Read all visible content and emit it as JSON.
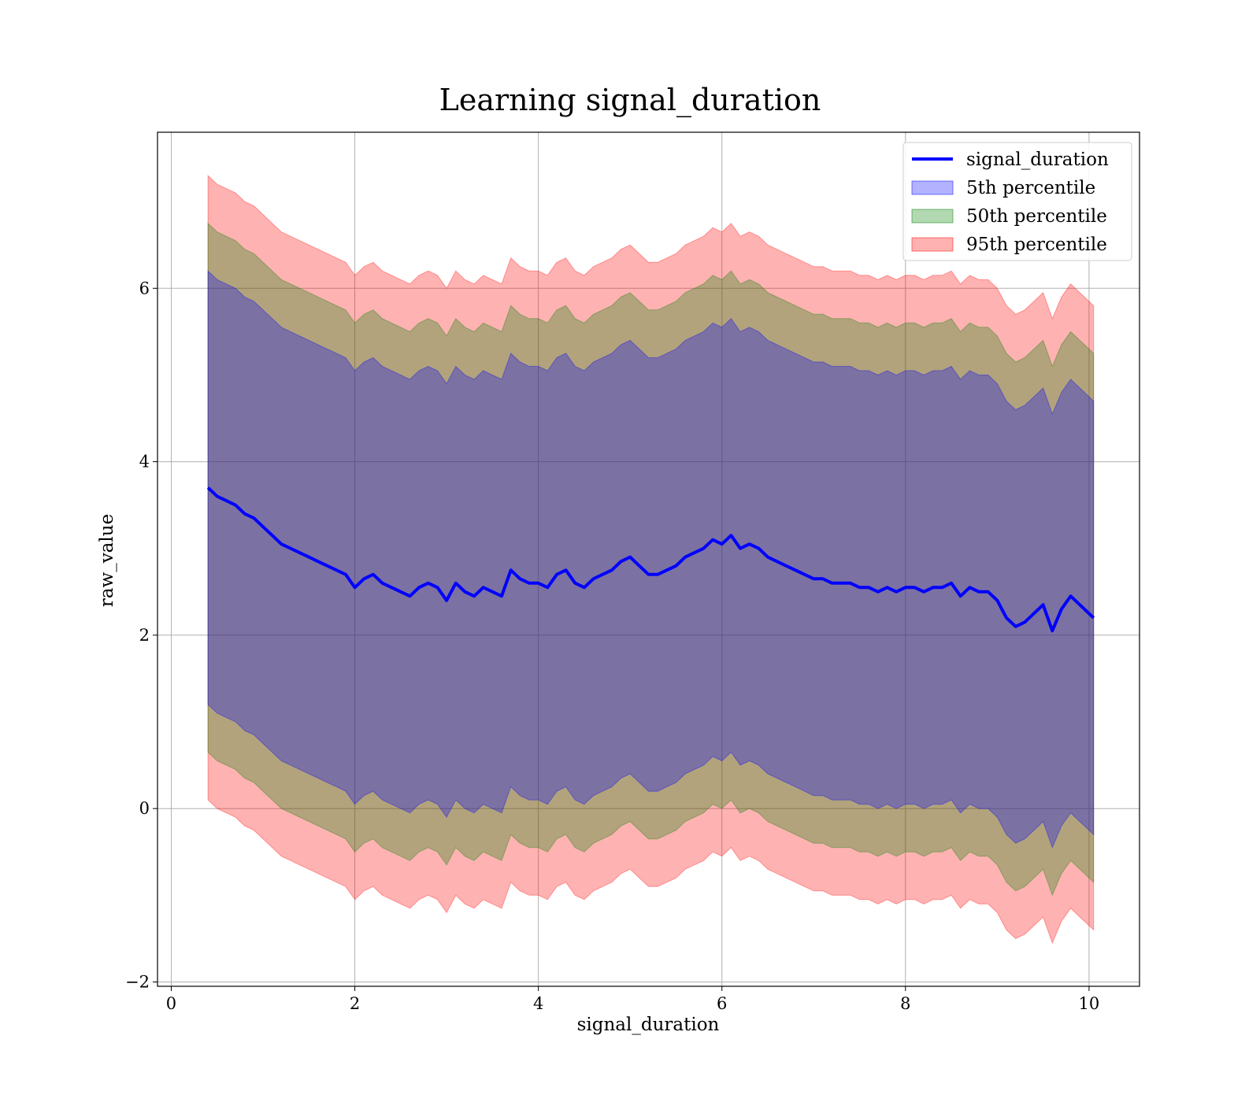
{
  "chart_data": {
    "type": "line",
    "title": "Learning signal_duration",
    "xlabel": "signal_duration",
    "ylabel": "raw_value",
    "xlim": [
      -0.15,
      10.55
    ],
    "ylim": [
      -2.05,
      7.8
    ],
    "xticks": [
      0,
      2,
      4,
      6,
      8,
      10
    ],
    "yticks": [
      -2,
      0,
      2,
      4,
      6
    ],
    "grid": true,
    "legend_position": "top-right",
    "line": {
      "name": "signal_duration",
      "color": "#0000ff",
      "x": [
        0.4,
        0.5,
        0.6,
        0.7,
        0.8,
        0.9,
        1.0,
        1.1,
        1.2,
        1.3,
        1.4,
        1.5,
        1.6,
        1.7,
        1.8,
        1.9,
        2.0,
        2.1,
        2.2,
        2.3,
        2.4,
        2.5,
        2.6,
        2.7,
        2.8,
        2.9,
        3.0,
        3.1,
        3.2,
        3.3,
        3.4,
        3.5,
        3.6,
        3.7,
        3.8,
        3.9,
        4.0,
        4.1,
        4.2,
        4.3,
        4.4,
        4.5,
        4.6,
        4.7,
        4.8,
        4.9,
        5.0,
        5.1,
        5.2,
        5.3,
        5.4,
        5.5,
        5.6,
        5.7,
        5.8,
        5.9,
        6.0,
        6.1,
        6.2,
        6.3,
        6.4,
        6.5,
        6.6,
        6.7,
        6.8,
        6.9,
        7.0,
        7.1,
        7.2,
        7.3,
        7.4,
        7.5,
        7.6,
        7.7,
        7.8,
        7.9,
        8.0,
        8.1,
        8.2,
        8.3,
        8.4,
        8.5,
        8.6,
        8.7,
        8.8,
        8.9,
        9.0,
        9.1,
        9.2,
        9.3,
        9.4,
        9.5,
        9.6,
        9.7,
        9.8,
        9.9,
        10.05
      ],
      "y": [
        3.7,
        3.6,
        3.55,
        3.5,
        3.4,
        3.35,
        3.25,
        3.15,
        3.05,
        3.0,
        2.95,
        2.9,
        2.85,
        2.8,
        2.75,
        2.7,
        2.55,
        2.65,
        2.7,
        2.6,
        2.55,
        2.5,
        2.45,
        2.55,
        2.6,
        2.55,
        2.4,
        2.6,
        2.5,
        2.45,
        2.55,
        2.5,
        2.45,
        2.75,
        2.65,
        2.6,
        2.6,
        2.55,
        2.7,
        2.75,
        2.6,
        2.55,
        2.65,
        2.7,
        2.75,
        2.85,
        2.9,
        2.8,
        2.7,
        2.7,
        2.75,
        2.8,
        2.9,
        2.95,
        3.0,
        3.1,
        3.05,
        3.15,
        3.0,
        3.05,
        3.0,
        2.9,
        2.85,
        2.8,
        2.75,
        2.7,
        2.65,
        2.65,
        2.6,
        2.6,
        2.6,
        2.55,
        2.55,
        2.5,
        2.55,
        2.5,
        2.55,
        2.55,
        2.5,
        2.55,
        2.55,
        2.6,
        2.45,
        2.55,
        2.5,
        2.5,
        2.4,
        2.2,
        2.1,
        2.15,
        2.25,
        2.35,
        2.05,
        2.3,
        2.45,
        2.35,
        2.2
      ]
    },
    "bands": [
      {
        "name": "5th percentile",
        "color": "#0000ff",
        "half_width": 2.5
      },
      {
        "name": "50th percentile",
        "color": "#008000",
        "half_width": 3.05
      },
      {
        "name": "95th percentile",
        "color": "#ff0000",
        "half_width": 3.6
      }
    ]
  }
}
